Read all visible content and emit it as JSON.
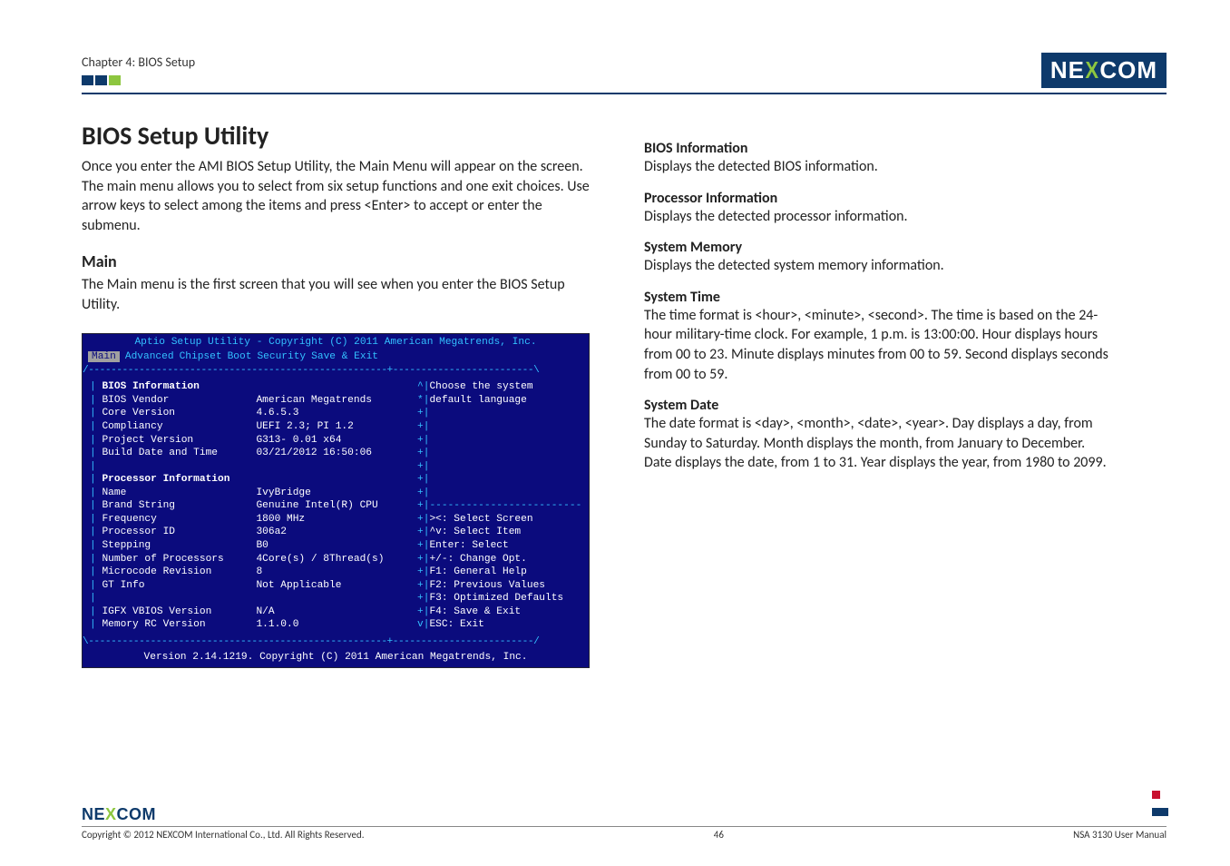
{
  "header": {
    "chapter": "Chapter 4: BIOS Setup",
    "logo_text_pre": "NE",
    "logo_text_x": "X",
    "logo_text_post": "COM",
    "flag_colors": [
      "#0e3a6b",
      "#0e3a6b",
      "#8dc63f"
    ],
    "rule_color": "#0e3a6b"
  },
  "left": {
    "title": "BIOS Setup Utility",
    "intro": "Once you enter the AMI BIOS Setup Utility, the Main Menu will appear on the screen. The main menu allows you to select from six setup functions and one exit choices. Use arrow keys to select among the items and press <Enter> to accept or enter the submenu.",
    "sub_title": "Main",
    "sub_text": "The Main menu is the first screen that you will see when you enter the BIOS Setup Utility."
  },
  "right": {
    "sections": [
      {
        "h": "BIOS Information",
        "p": "Displays the detected BIOS information."
      },
      {
        "h": "Processor Information",
        "p": "Displays the detected processor information."
      },
      {
        "h": "System Memory",
        "p": "Displays the detected system memory information."
      },
      {
        "h": "System Time",
        "p": "The time format is <hour>, <minute>, <second>. The time is based on the 24-hour military-time clock. For example, 1 p.m. is 13:00:00. Hour displays hours from 00 to 23. Minute displays minutes from 00 to 59. Second displays seconds from 00 to 59."
      },
      {
        "h": "System Date",
        "p": "The date format is <day>, <month>, <date>, <year>. Day displays a day, from Sunday to Saturday. Month displays the month, from January to December. Date displays the date, from 1 to 31. Year displays the year, from 1980 to 2099."
      }
    ]
  },
  "bios": {
    "bg_color": "#0b0b7d",
    "accent_color": "#33c0ff",
    "title_top": "Aptio Setup Utility - Copyright (C) 2011 American Megatrends, Inc.",
    "menu_items": [
      "Main",
      "Advanced",
      "Chipset",
      "Boot",
      "Security",
      "Save & Exit"
    ],
    "menu_selected_index": 0,
    "left_rows": [
      {
        "lbl": "BIOS Information",
        "val": "",
        "bold": true
      },
      {
        "lbl": "BIOS Vendor",
        "val": "American Megatrends"
      },
      {
        "lbl": "Core Version",
        "val": "4.6.5.3"
      },
      {
        "lbl": "Compliancy",
        "val": "UEFI 2.3; PI 1.2"
      },
      {
        "lbl": "Project Version",
        "val": "G313- 0.01 x64"
      },
      {
        "lbl": "Build Date and Time",
        "val": "03/21/2012 16:50:06"
      },
      {
        "lbl": "",
        "val": ""
      },
      {
        "lbl": "Processor Information",
        "val": "",
        "bold": true
      },
      {
        "lbl": "Name",
        "val": "IvyBridge"
      },
      {
        "lbl": "Brand String",
        "val": "Genuine Intel(R) CPU"
      },
      {
        "lbl": "Frequency",
        "val": "1800 MHz"
      },
      {
        "lbl": "Processor ID",
        "val": "306a2"
      },
      {
        "lbl": "Stepping",
        "val": "B0"
      },
      {
        "lbl": "Number of Processors",
        "val": "4Core(s) / 8Thread(s)"
      },
      {
        "lbl": "Microcode Revision",
        "val": "8"
      },
      {
        "lbl": "GT Info",
        "val": "Not Applicable"
      },
      {
        "lbl": "",
        "val": ""
      },
      {
        "lbl": "IGFX VBIOS Version",
        "val": "N/A"
      },
      {
        "lbl": "Memory RC Version",
        "val": "1.1.0.0"
      }
    ],
    "right_help_top": [
      "Choose the system",
      "default language"
    ],
    "right_help_keys": [
      "><: Select Screen",
      "^v: Select Item",
      "Enter: Select",
      "+/-: Change Opt.",
      "F1: General Help",
      "F2: Previous Values",
      "F3: Optimized Defaults",
      "F4: Save & Exit",
      "ESC: Exit"
    ],
    "footer": "Version 2.14.1219. Copyright (C) 2011 American Megatrends, Inc."
  },
  "footer": {
    "copyright": "Copyright © 2012 NEXCOM International Co., Ltd. All Rights Reserved.",
    "page": "46",
    "manual": "NSA 3130 User Manual",
    "corner_colors": [
      "#c8102e",
      "#0e3a6b",
      "#0e3a6b"
    ]
  }
}
